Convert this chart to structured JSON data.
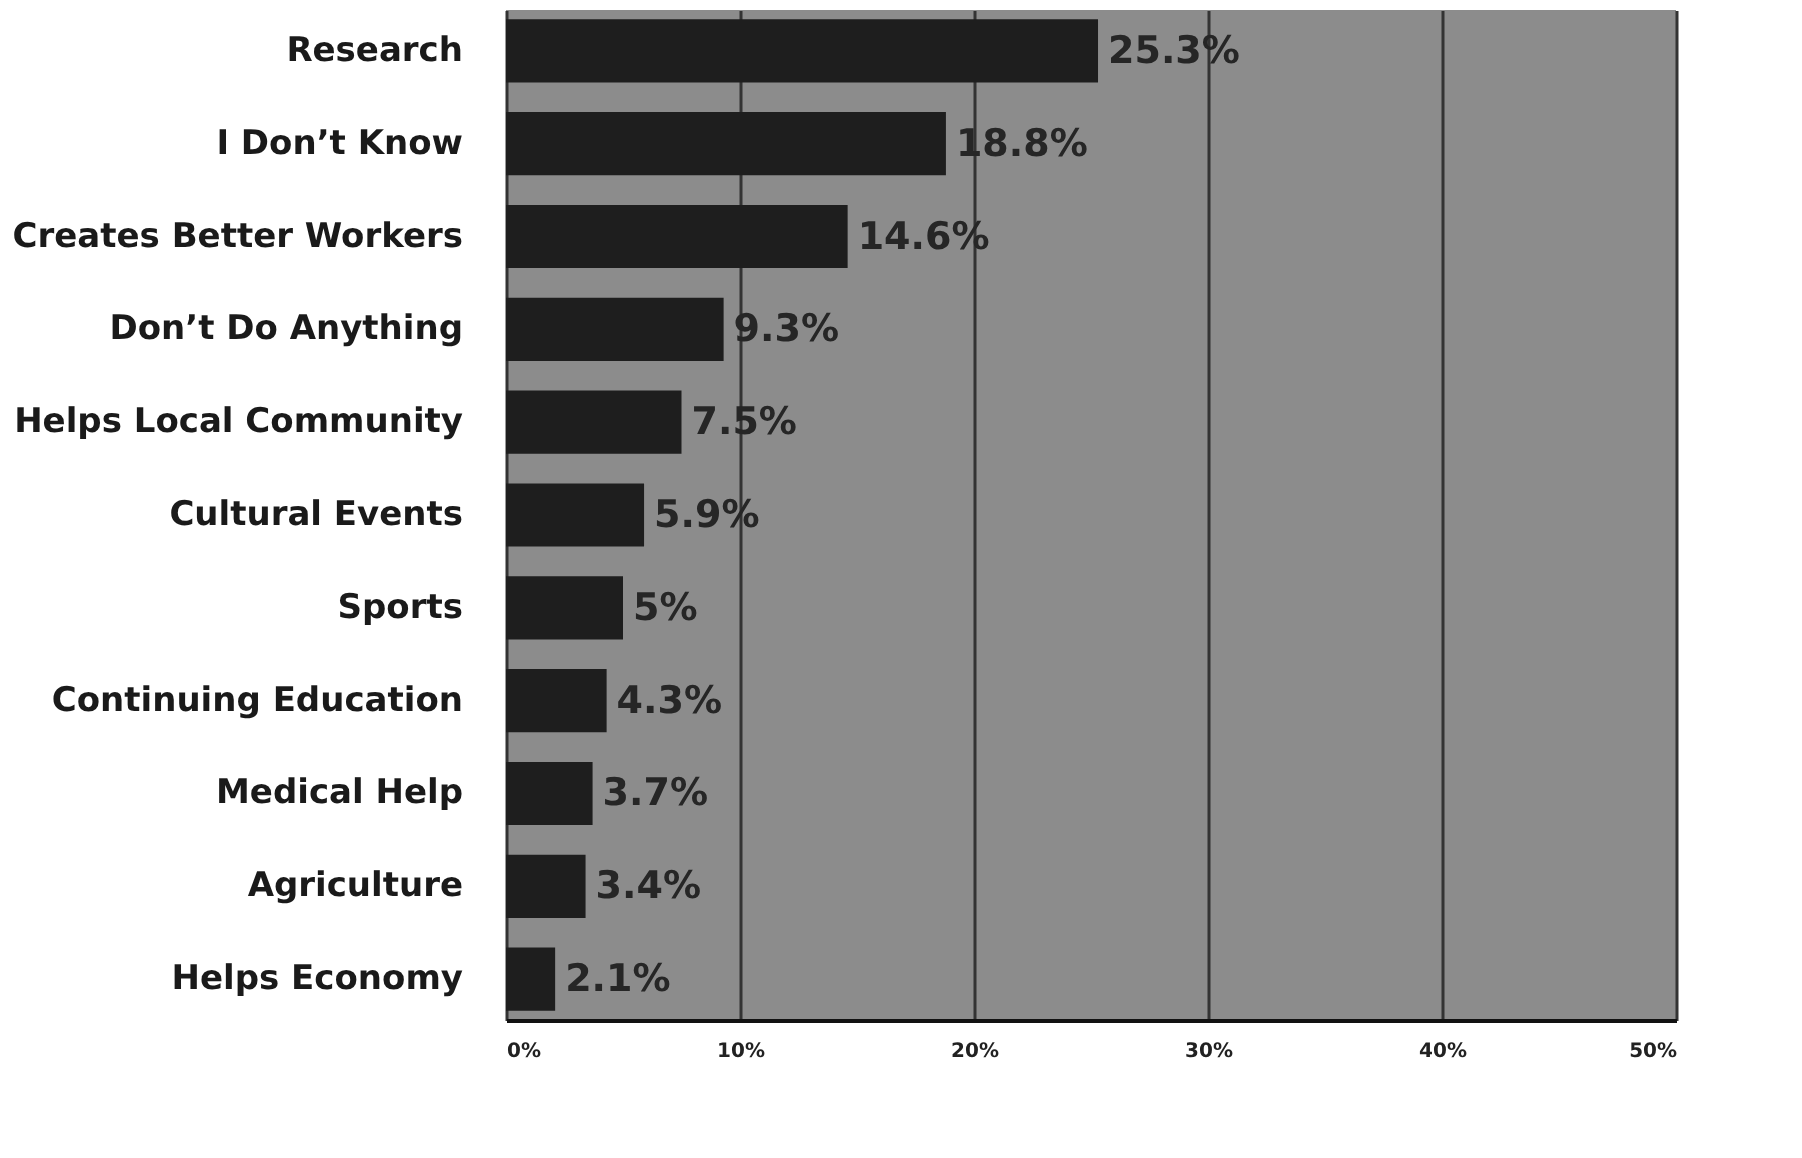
{
  "chart_data": {
    "type": "bar",
    "orientation": "horizontal",
    "categories": [
      "Research",
      "I Don’t Know",
      "Creates Better Workers",
      "Don’t Do Anything",
      "Helps Local Community",
      "Cultural Events",
      "Sports",
      "Continuing Education",
      "Medical Help",
      "Agriculture",
      "Helps Economy"
    ],
    "values": [
      25.3,
      18.8,
      14.6,
      9.3,
      7.5,
      5.9,
      5,
      4.3,
      3.7,
      3.4,
      2.1
    ],
    "value_labels": [
      "25.3%",
      "18.8%",
      "14.6%",
      "9.3%",
      "7.5%",
      "5.9%",
      "5%",
      "4.3%",
      "3.7%",
      "3.4%",
      "2.1%"
    ],
    "color": "#1e1e1e",
    "xlim": [
      0,
      50
    ],
    "xticks": [
      {
        "value": 0,
        "label": "0%"
      },
      {
        "value": 10,
        "label": "10%"
      },
      {
        "value": 20,
        "label": "20%"
      },
      {
        "value": 30,
        "label": "30%"
      },
      {
        "value": 40,
        "label": "40%"
      },
      {
        "value": 50,
        "label": "50%"
      }
    ],
    "grid": "x"
  }
}
